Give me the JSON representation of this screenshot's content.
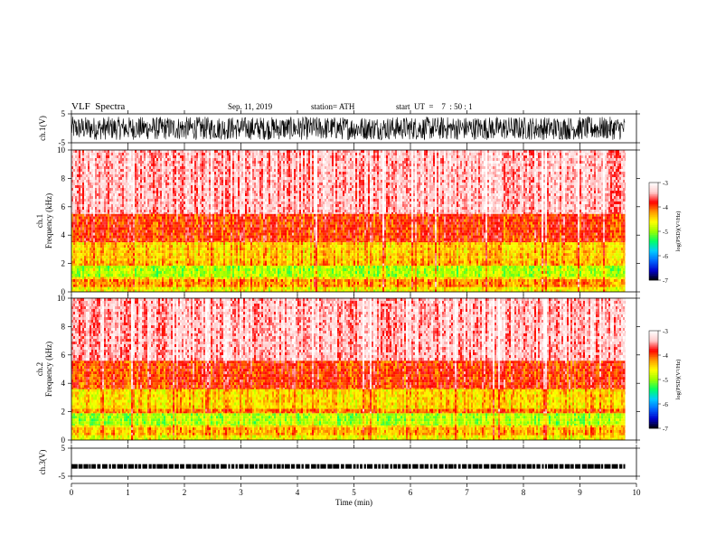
{
  "header": {
    "title": "VLF  Spectra",
    "date": "Sep. 11, 2019",
    "station": "station= ATH",
    "start": "start  UT  =    7  : 50 : 1"
  },
  "colors": {
    "colormap": [
      "#000000",
      "#0000cc",
      "#0066ff",
      "#00ccff",
      "#00ff66",
      "#99ff00",
      "#ffff00",
      "#ff9900",
      "#ff0000",
      "#ffcccc",
      "#ffffff"
    ]
  },
  "chart_data": [
    {
      "id": "ch1-waveform",
      "type": "line",
      "ylabel": "ch.1(V)",
      "ylim": [
        -5,
        5
      ],
      "yticks": [
        "5",
        "-5"
      ],
      "x": [
        0,
        9.8
      ],
      "amplitude": [
        -4,
        4
      ]
    },
    {
      "id": "ch1-spectrogram",
      "type": "heatmap",
      "ylabel": "ch.1\nFrequency  (kHz)",
      "ylim": [
        0,
        10
      ],
      "yticks": [
        "0",
        "2",
        "4",
        "6",
        "8",
        "10"
      ],
      "x_range": [
        0,
        9.8
      ],
      "colorbar": {
        "label": "log(PSD)(V²/Hz)",
        "range": [
          -7,
          -3
        ],
        "ticks": [
          "-3",
          "-4",
          "-5",
          "-6",
          "-7"
        ]
      },
      "bands": [
        {
          "from": 0,
          "to": 0.35,
          "level": -4.6
        },
        {
          "from": 0.35,
          "to": 0.9,
          "level": -4.2
        },
        {
          "from": 0.9,
          "to": 1.05,
          "level": -4.5
        },
        {
          "from": 1.05,
          "to": 1.85,
          "level": -4.9
        },
        {
          "from": 1.85,
          "to": 2.2,
          "level": -4.3
        },
        {
          "from": 2.2,
          "to": 3.5,
          "level": -4.4
        },
        {
          "from": 3.5,
          "to": 5.5,
          "level": -3.9
        },
        {
          "from": 5.5,
          "to": 10,
          "level": -3.4
        }
      ]
    },
    {
      "id": "ch2-spectrogram",
      "type": "heatmap",
      "ylabel": "ch.2\nFrequency  (kHz)",
      "ylim": [
        0,
        10
      ],
      "yticks": [
        "0",
        "2",
        "4",
        "6",
        "8",
        "10"
      ],
      "x_range": [
        0,
        9.8
      ],
      "colorbar": {
        "label": "log(PSD)(V²/Hz)",
        "range": [
          -7,
          -3
        ],
        "ticks": [
          "-3",
          "-4",
          "-5",
          "-6",
          "-7"
        ]
      },
      "bands": [
        {
          "from": 0,
          "to": 0.35,
          "level": -4.6
        },
        {
          "from": 0.35,
          "to": 0.9,
          "level": -4.3
        },
        {
          "from": 0.9,
          "to": 1.05,
          "level": -4.5
        },
        {
          "from": 1.05,
          "to": 1.9,
          "level": -4.9
        },
        {
          "from": 1.9,
          "to": 2.2,
          "level": -4.1
        },
        {
          "from": 2.2,
          "to": 3.6,
          "level": -4.45
        },
        {
          "from": 3.6,
          "to": 5.6,
          "level": -3.9
        },
        {
          "from": 5.6,
          "to": 10,
          "level": -3.4
        }
      ]
    },
    {
      "id": "ch3-waveform",
      "type": "line",
      "ylabel": "ch.3(V)",
      "ylim": [
        -5,
        5
      ],
      "yticks": [
        "5",
        "-5"
      ],
      "x": [
        0,
        9.8
      ],
      "level": -1.5
    }
  ],
  "xaxis": {
    "label": "Time  (min)",
    "ticks": [
      "0",
      "1",
      "2",
      "3",
      "4",
      "5",
      "6",
      "7",
      "8",
      "9",
      "10"
    ],
    "xlim": [
      0,
      10
    ]
  }
}
